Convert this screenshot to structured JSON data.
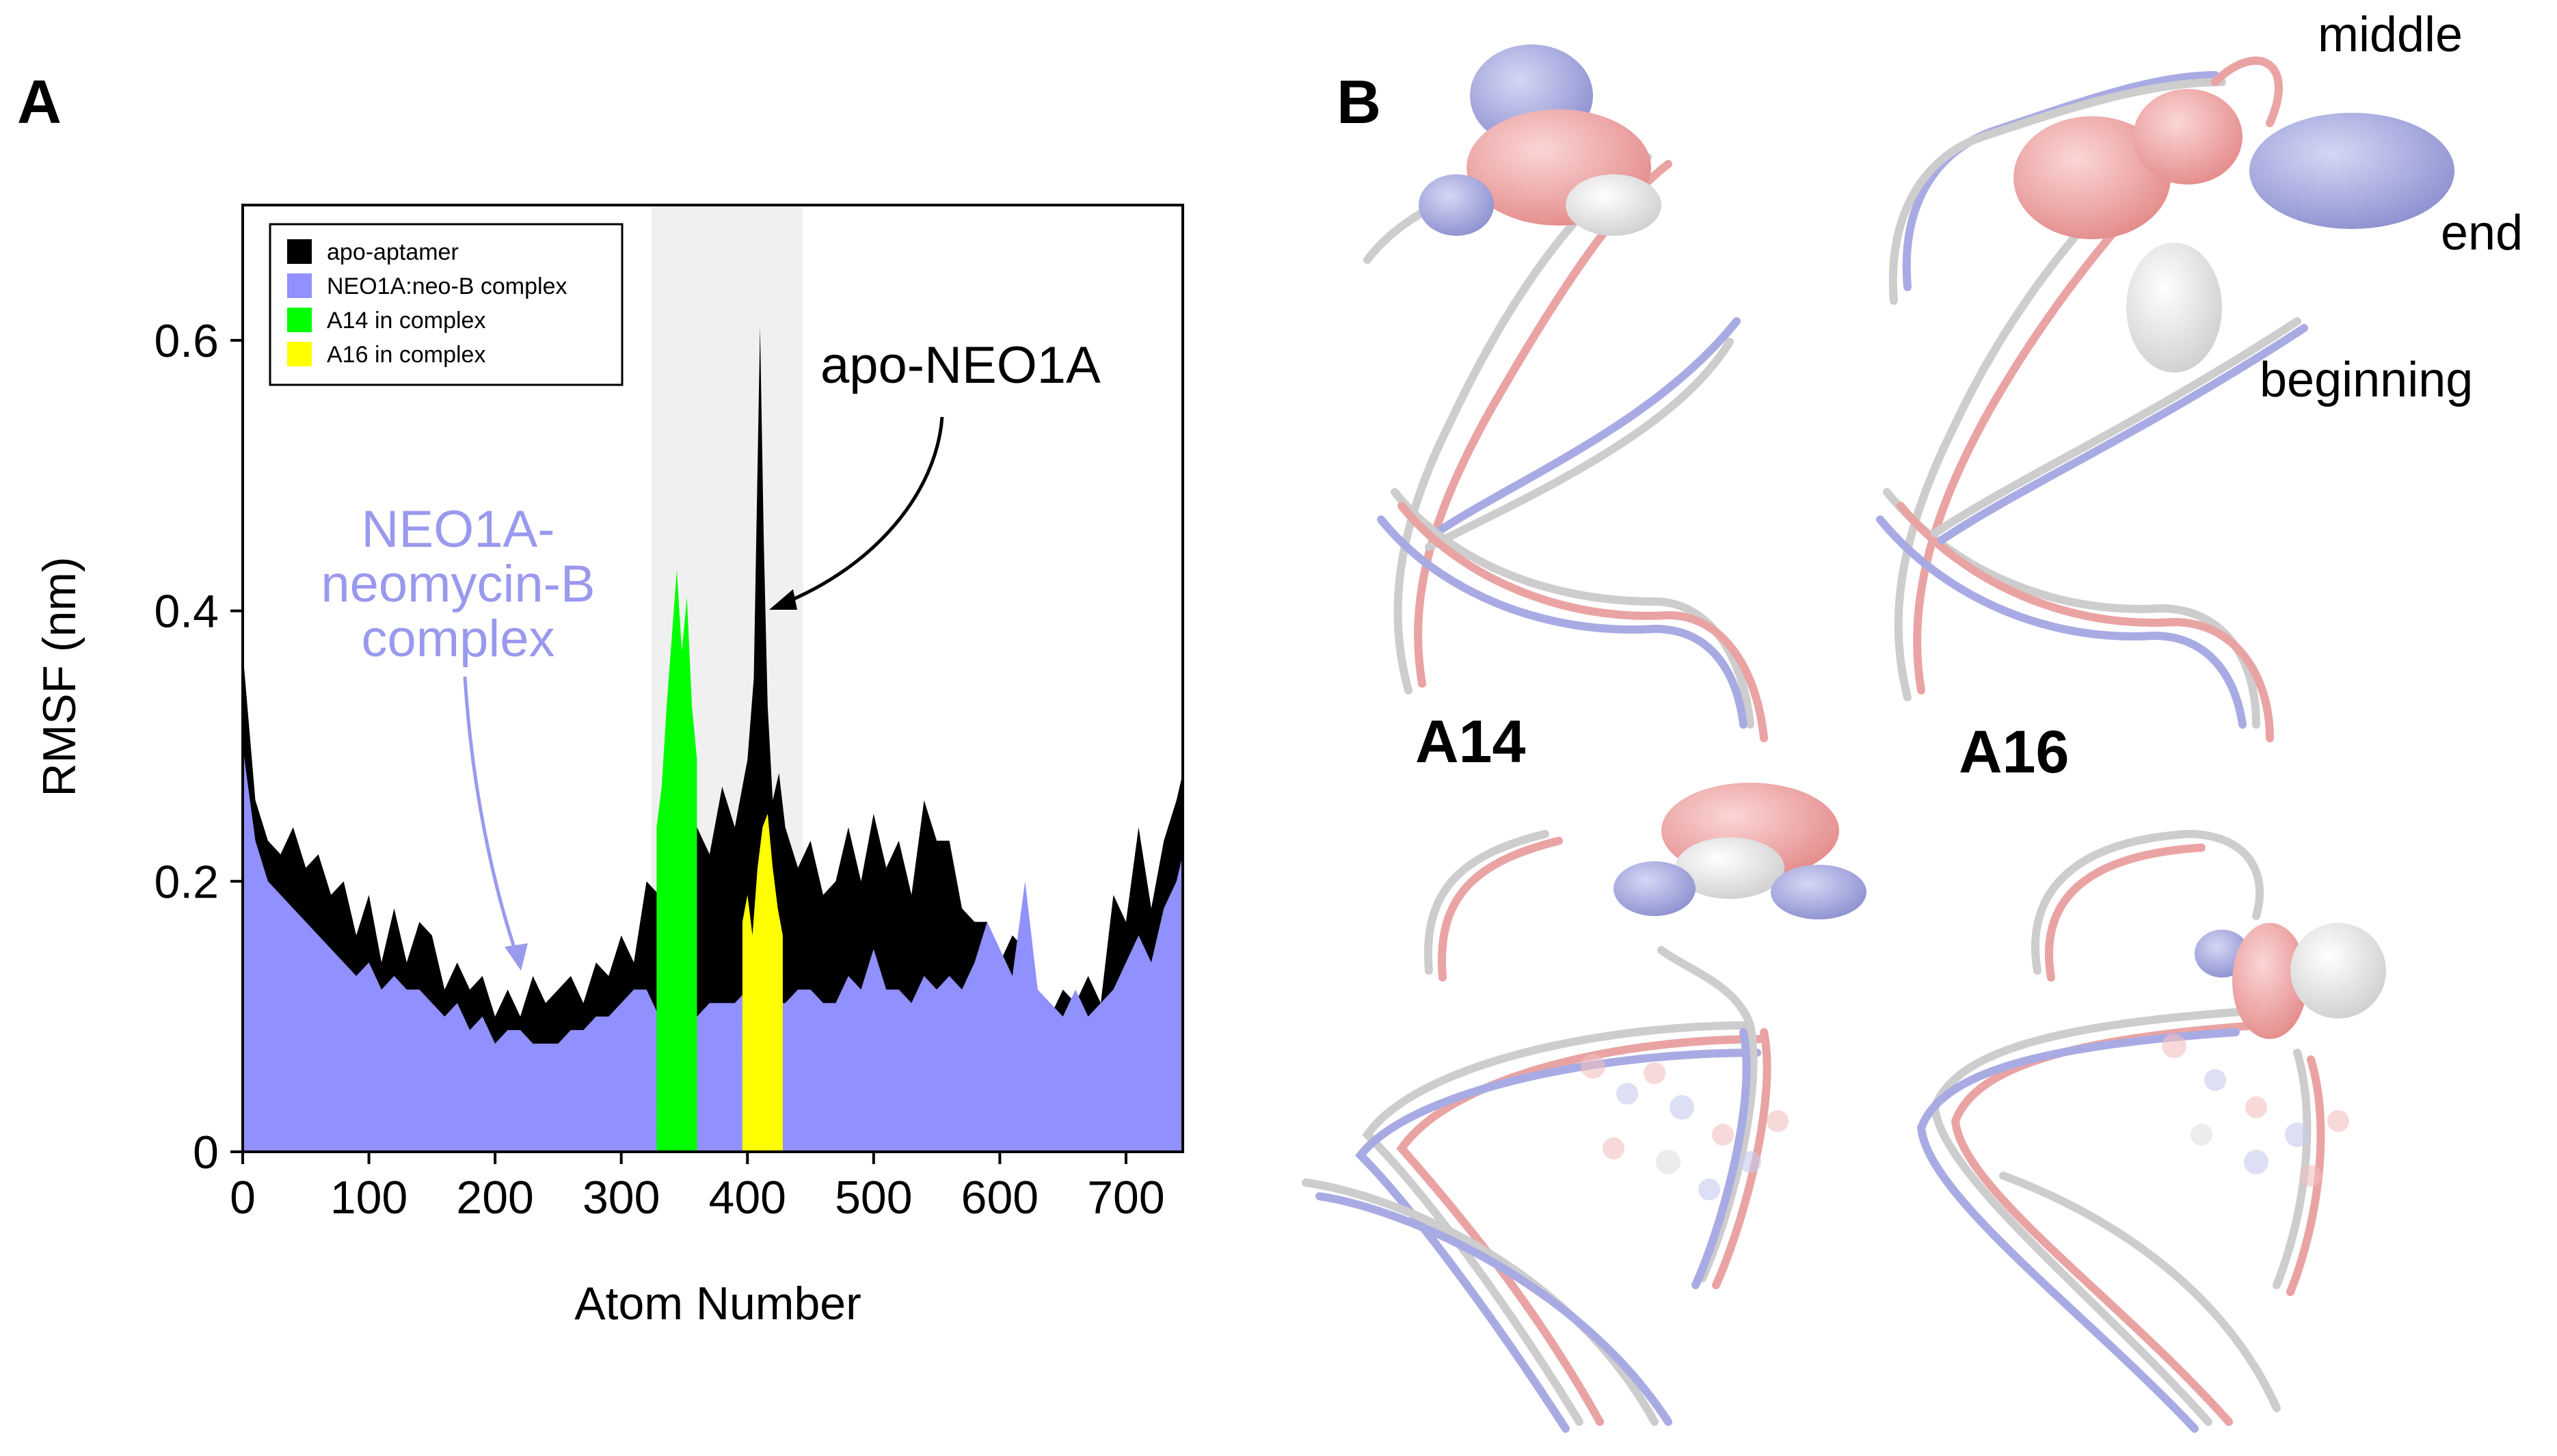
{
  "panels": {
    "a": {
      "letter": "A"
    },
    "b": {
      "letter": "B",
      "labels": {
        "middle": "middle",
        "end": "end",
        "beginning": "beginning",
        "a14": "A14",
        "a16": "A16"
      }
    }
  },
  "annotations": {
    "apo": "apo-NEO1A",
    "complex": [
      "NEO1A-",
      "neomycin-B",
      "complex"
    ]
  },
  "colors": {
    "apo": "#000000",
    "complex": "#9090ff",
    "a14": "#00ff00",
    "a16": "#ffff00",
    "highlight": "#f0f0f0",
    "annotation_complex": "#9999ee",
    "ribbon_red": "#e89a9a",
    "ribbon_blue": "#9fa3e0",
    "ribbon_grey": "#c8c8c8"
  },
  "chart_data": {
    "type": "area",
    "title": "",
    "xlabel": "Atom Number",
    "ylabel": "RMSF (nm)",
    "xlim": [
      0,
      745
    ],
    "ylim": [
      0,
      0.7
    ],
    "xticks": [
      0,
      100,
      200,
      300,
      400,
      500,
      600,
      700
    ],
    "yticks": [
      0,
      0.2,
      0.4,
      0.6
    ],
    "ytick_labels": [
      "0",
      "0.2",
      "0.4",
      "0.6"
    ],
    "grid": false,
    "legend_position": "top-left",
    "highlight_x_range": [
      324,
      444
    ],
    "series": [
      {
        "name": "apo-aptamer",
        "x": [
          0,
          10,
          20,
          30,
          40,
          50,
          60,
          70,
          80,
          90,
          100,
          110,
          120,
          130,
          140,
          150,
          160,
          170,
          180,
          190,
          200,
          210,
          220,
          230,
          240,
          250,
          260,
          270,
          280,
          290,
          300,
          310,
          320,
          330,
          340,
          350,
          360,
          370,
          380,
          390,
          400,
          405,
          410,
          413,
          416,
          420,
          425,
          430,
          440,
          450,
          460,
          470,
          480,
          490,
          500,
          510,
          520,
          530,
          540,
          550,
          560,
          570,
          580,
          590,
          600,
          610,
          620,
          630,
          640,
          650,
          660,
          670,
          680,
          690,
          700,
          710,
          720,
          730,
          740,
          745
        ],
        "values": [
          0.37,
          0.26,
          0.23,
          0.22,
          0.24,
          0.21,
          0.22,
          0.19,
          0.2,
          0.16,
          0.19,
          0.14,
          0.18,
          0.14,
          0.17,
          0.16,
          0.12,
          0.14,
          0.12,
          0.13,
          0.1,
          0.12,
          0.1,
          0.13,
          0.11,
          0.12,
          0.13,
          0.11,
          0.14,
          0.13,
          0.16,
          0.14,
          0.2,
          0.19,
          0.27,
          0.26,
          0.24,
          0.22,
          0.27,
          0.24,
          0.29,
          0.35,
          0.61,
          0.45,
          0.33,
          0.26,
          0.28,
          0.24,
          0.21,
          0.23,
          0.19,
          0.2,
          0.24,
          0.2,
          0.25,
          0.21,
          0.23,
          0.19,
          0.26,
          0.23,
          0.23,
          0.18,
          0.17,
          0.17,
          0.14,
          0.16,
          0.15,
          0.11,
          0.1,
          0.12,
          0.11,
          0.13,
          0.11,
          0.19,
          0.17,
          0.24,
          0.18,
          0.23,
          0.26,
          0.28
        ]
      },
      {
        "name": "NEO1A:neo-B complex",
        "x": [
          0,
          10,
          20,
          30,
          40,
          50,
          60,
          70,
          80,
          90,
          100,
          110,
          120,
          130,
          140,
          150,
          160,
          170,
          180,
          190,
          200,
          210,
          220,
          230,
          240,
          250,
          260,
          270,
          280,
          290,
          300,
          310,
          320,
          330,
          340,
          350,
          360,
          370,
          380,
          390,
          400,
          410,
          420,
          430,
          440,
          450,
          460,
          470,
          480,
          490,
          500,
          510,
          520,
          530,
          540,
          550,
          560,
          570,
          580,
          590,
          600,
          610,
          620,
          630,
          640,
          650,
          660,
          670,
          680,
          690,
          700,
          710,
          720,
          730,
          740,
          745
        ],
        "values": [
          0.3,
          0.23,
          0.2,
          0.19,
          0.18,
          0.17,
          0.16,
          0.15,
          0.14,
          0.13,
          0.14,
          0.12,
          0.13,
          0.12,
          0.12,
          0.11,
          0.1,
          0.11,
          0.09,
          0.1,
          0.08,
          0.09,
          0.09,
          0.08,
          0.08,
          0.08,
          0.09,
          0.09,
          0.1,
          0.1,
          0.11,
          0.12,
          0.12,
          0.1,
          0.1,
          0.1,
          0.1,
          0.11,
          0.11,
          0.11,
          0.12,
          0.12,
          0.11,
          0.11,
          0.12,
          0.12,
          0.11,
          0.11,
          0.13,
          0.12,
          0.15,
          0.12,
          0.12,
          0.11,
          0.13,
          0.12,
          0.13,
          0.12,
          0.14,
          0.17,
          0.15,
          0.13,
          0.2,
          0.12,
          0.11,
          0.1,
          0.12,
          0.1,
          0.11,
          0.12,
          0.14,
          0.16,
          0.14,
          0.18,
          0.2,
          0.22
        ]
      },
      {
        "name": "A14 in complex",
        "x": [
          328,
          332,
          336,
          340,
          344,
          348,
          352,
          356,
          360
        ],
        "values": [
          0.24,
          0.27,
          0.33,
          0.38,
          0.43,
          0.37,
          0.41,
          0.33,
          0.29
        ]
      },
      {
        "name": "A16 in complex",
        "x": [
          396,
          400,
          404,
          408,
          412,
          416,
          420,
          424,
          428
        ],
        "values": [
          0.17,
          0.19,
          0.16,
          0.21,
          0.24,
          0.25,
          0.21,
          0.18,
          0.16
        ]
      }
    ]
  }
}
